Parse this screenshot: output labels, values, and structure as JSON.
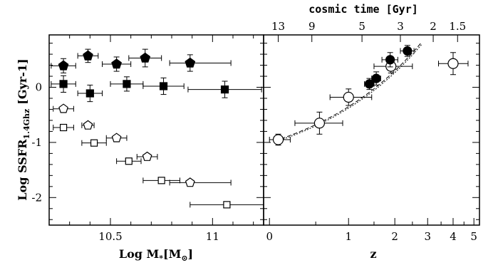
{
  "chart_data": [
    {
      "type": "scatter",
      "xlabel_main": "Log M",
      "xlabel_sub": "*",
      "xlabel_unit": "[M",
      "xlabel_unit_sub": "⊙",
      "xlabel_close": "]",
      "ylabel_main": "Log SSFR",
      "ylabel_sub": "1.4Ghz",
      "ylabel_unit": "[Gyr-1]",
      "xlim": [
        10.2,
        11.25
      ],
      "ylim": [
        -2.5,
        0.95
      ],
      "xticks": [
        {
          "v": 10.5,
          "label": "10.5"
        },
        {
          "v": 11.0,
          "label": "11"
        }
      ],
      "yticks": [
        {
          "v": 0,
          "label": "0"
        },
        {
          "v": -1,
          "label": "-1"
        },
        {
          "v": -2,
          "label": "-2"
        }
      ],
      "series": [
        {
          "marker": "pentagon",
          "filled": true,
          "points": [
            {
              "x": 10.27,
              "y": 0.39,
              "xerr": [
                0.06,
                0.06
              ],
              "yerr": [
                0.13,
                0.13
              ]
            },
            {
              "x": 10.39,
              "y": 0.57,
              "xerr": [
                0.05,
                0.05
              ],
              "yerr": [
                0.12,
                0.12
              ]
            },
            {
              "x": 10.53,
              "y": 0.42,
              "xerr": [
                0.07,
                0.07
              ],
              "yerr": [
                0.13,
                0.13
              ]
            },
            {
              "x": 10.67,
              "y": 0.53,
              "xerr": [
                0.08,
                0.08
              ],
              "yerr": [
                0.16,
                0.16
              ]
            },
            {
              "x": 10.89,
              "y": 0.44,
              "xerr": [
                0.1,
                0.2
              ],
              "yerr": [
                0.15,
                0.15
              ]
            }
          ]
        },
        {
          "marker": "square",
          "filled": true,
          "points": [
            {
              "x": 10.27,
              "y": 0.06,
              "xerr": [
                0.06,
                0.06
              ],
              "yerr": [
                0.15,
                0.15
              ]
            },
            {
              "x": 10.4,
              "y": -0.11,
              "xerr": [
                0.06,
                0.06
              ],
              "yerr": [
                0.15,
                0.15
              ]
            },
            {
              "x": 10.58,
              "y": 0.06,
              "xerr": [
                0.08,
                0.08
              ],
              "yerr": [
                0.13,
                0.13
              ]
            },
            {
              "x": 10.76,
              "y": 0.02,
              "xerr": [
                0.1,
                0.1
              ],
              "yerr": [
                0.15,
                0.15
              ]
            },
            {
              "x": 11.06,
              "y": -0.04,
              "xerr": [
                0.18,
                0.18
              ],
              "yerr": [
                0.15,
                0.15
              ]
            }
          ]
        },
        {
          "marker": "pentagon",
          "filled": false,
          "points": [
            {
              "x": 10.27,
              "y": -0.39,
              "xerr": [
                0.05,
                0.05
              ],
              "yerr": [
                0,
                0
              ]
            },
            {
              "x": 10.39,
              "y": -0.69,
              "xerr": [
                0.03,
                0.03
              ],
              "yerr": [
                0,
                0
              ]
            },
            {
              "x": 10.53,
              "y": -0.92,
              "xerr": [
                0.05,
                0.05
              ],
              "yerr": [
                0,
                0
              ]
            },
            {
              "x": 10.68,
              "y": -1.26,
              "xerr": [
                0.05,
                0.05
              ],
              "yerr": [
                0,
                0
              ]
            },
            {
              "x": 10.89,
              "y": -1.73,
              "xerr": [
                0.1,
                0.2
              ],
              "yerr": [
                0,
                0
              ]
            }
          ]
        },
        {
          "marker": "square",
          "filled": false,
          "points": [
            {
              "x": 10.27,
              "y": -0.73,
              "xerr": [
                0.05,
                0.05
              ],
              "yerr": [
                0,
                0
              ]
            },
            {
              "x": 10.42,
              "y": -1.01,
              "xerr": [
                0.06,
                0.06
              ],
              "yerr": [
                0,
                0
              ]
            },
            {
              "x": 10.59,
              "y": -1.34,
              "xerr": [
                0.06,
                0.06
              ],
              "yerr": [
                0,
                0
              ]
            },
            {
              "x": 10.75,
              "y": -1.69,
              "xerr": [
                0.09,
                0.09
              ],
              "yerr": [
                0,
                0
              ]
            },
            {
              "x": 11.07,
              "y": -2.13,
              "xerr": [
                0.18,
                0.18
              ],
              "yerr": [
                0,
                0
              ]
            }
          ]
        }
      ]
    },
    {
      "type": "scatter",
      "xlabel": "z",
      "top_label": "cosmic time [Gyr]",
      "xscale": "log(1+z)",
      "xlim": [
        -0.05,
        5.3
      ],
      "ylim": [
        -2.5,
        0.95
      ],
      "xticks": [
        {
          "v": 0,
          "label": "0"
        },
        {
          "v": 1,
          "label": "1"
        },
        {
          "v": 2,
          "label": "2"
        },
        {
          "v": 3,
          "label": "3"
        },
        {
          "v": 4,
          "label": "4"
        },
        {
          "v": 5,
          "label": "5"
        }
      ],
      "top_ticks": [
        {
          "z": 0.08,
          "label": "13"
        },
        {
          "z": 0.45,
          "label": "9"
        },
        {
          "z": 1.25,
          "label": "5"
        },
        {
          "z": 2.15,
          "label": "3"
        },
        {
          "z": 3.2,
          "label": "2"
        },
        {
          "z": 4.2,
          "label": "1.5"
        }
      ],
      "fit_lines": [
        {
          "style": "dashed",
          "x": [
            0.05,
            2.8
          ],
          "y": [
            -0.97,
            0.82
          ]
        },
        {
          "style": "dotted",
          "x": [
            0.05,
            2.8
          ],
          "y": [
            -0.99,
            0.78
          ]
        }
      ],
      "series": [
        {
          "marker": "circle",
          "filled": false,
          "points": [
            {
              "x": 0.08,
              "y": -0.95,
              "xerr": [
                0.08,
                0.12
              ],
              "yerr": [
                0.1,
                0.1
              ]
            },
            {
              "x": 0.55,
              "y": -0.65,
              "xerr": [
                0.3,
                0.35
              ],
              "yerr": [
                0.2,
                0.2
              ]
            },
            {
              "x": 1.0,
              "y": -0.18,
              "xerr": [
                0.3,
                0.45
              ],
              "yerr": [
                0.15,
                0.15
              ]
            },
            {
              "x": 1.9,
              "y": 0.38,
              "xerr": [
                0.4,
                0.6
              ],
              "yerr": [
                0.12,
                0.12
              ]
            },
            {
              "x": 4.0,
              "y": 0.43,
              "xerr": [
                0.6,
                0.7
              ],
              "yerr": [
                0.2,
                0.2
              ]
            }
          ]
        },
        {
          "marker": "circle",
          "filled": true,
          "points": [
            {
              "x": 1.4,
              "y": 0.06,
              "xerr": [
                0.1,
                0.1
              ],
              "yerr": [
                0.1,
                0.1
              ]
            },
            {
              "x": 1.55,
              "y": 0.16,
              "xerr": [
                0.1,
                0.1
              ],
              "yerr": [
                0.12,
                0.12
              ]
            },
            {
              "x": 1.88,
              "y": 0.5,
              "xerr": [
                0.2,
                0.2
              ],
              "yerr": [
                0.13,
                0.13
              ]
            },
            {
              "x": 2.35,
              "y": 0.66,
              "xerr": [
                0.2,
                0.2
              ],
              "yerr": [
                0.1,
                0.1
              ]
            }
          ]
        }
      ]
    }
  ]
}
